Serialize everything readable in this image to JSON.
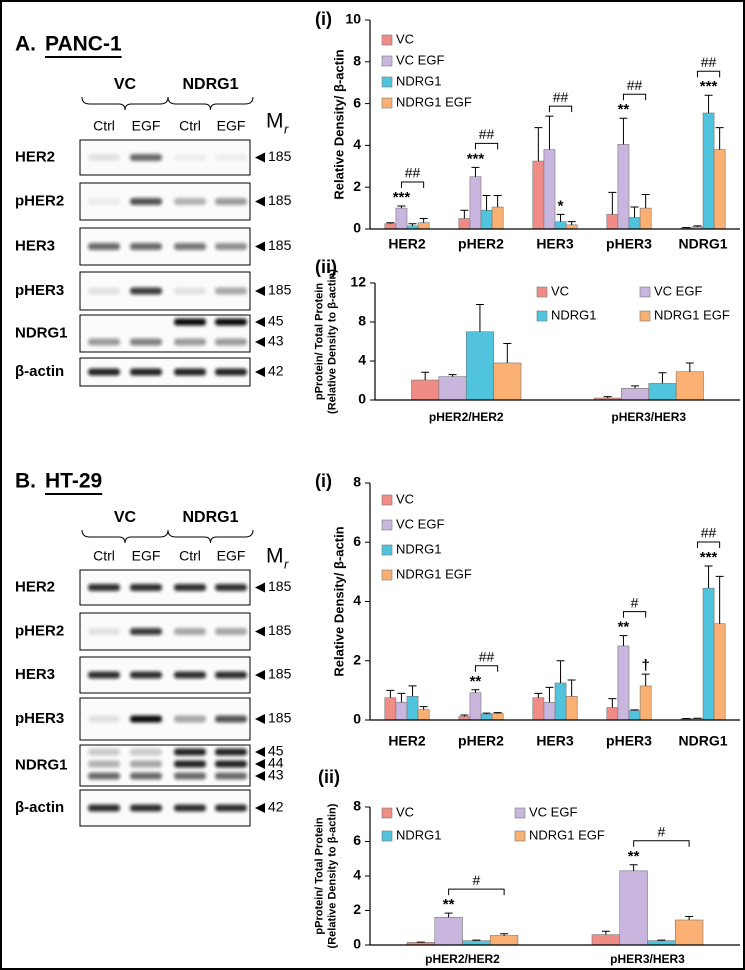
{
  "panels": [
    {
      "letter": "A.",
      "name": "PANC-1",
      "groups": [
        "VC",
        "NDRG1"
      ],
      "lanes": [
        "Ctrl",
        "EGF",
        "Ctrl",
        "EGF"
      ],
      "mr": {
        "symbol": "M",
        "subscript": "r"
      },
      "rows": [
        {
          "name": "HER2",
          "markers": [
            185
          ]
        },
        {
          "name": "pHER2",
          "markers": [
            185
          ]
        },
        {
          "name": "HER3",
          "markers": [
            185
          ]
        },
        {
          "name": "pHER3",
          "markers": [
            185
          ]
        },
        {
          "name": "NDRG1",
          "markers": [
            45,
            43
          ]
        },
        {
          "name": "β-actin",
          "markers": [
            42
          ]
        }
      ]
    },
    {
      "letter": "B.",
      "name": "HT-29",
      "groups": [
        "VC",
        "NDRG1"
      ],
      "lanes": [
        "Ctrl",
        "EGF",
        "Ctrl",
        "EGF"
      ],
      "mr": {
        "symbol": "M",
        "subscript": "r"
      },
      "rows": [
        {
          "name": "HER2",
          "markers": [
            185
          ]
        },
        {
          "name": "pHER2",
          "markers": [
            185
          ]
        },
        {
          "name": "HER3",
          "markers": [
            185
          ]
        },
        {
          "name": "pHER3",
          "markers": [
            185
          ]
        },
        {
          "name": "NDRG1",
          "markers": [
            45,
            44,
            43
          ]
        },
        {
          "name": "β-actin",
          "markers": [
            42
          ]
        }
      ]
    }
  ],
  "chart_data": [
    {
      "type": "bar",
      "label": "(i)",
      "ylabel": "Relative Density/ β-actin",
      "legend": "upper left",
      "categories": [
        "HER2",
        "pHER2",
        "HER3",
        "pHER3",
        "NDRG1"
      ],
      "ylim": [
        0,
        10
      ],
      "yticks": [
        0,
        2,
        4,
        6,
        8,
        10
      ],
      "brackets": [
        "##",
        "##",
        "##",
        "##",
        "##"
      ],
      "series": [
        {
          "name": "VC",
          "color": "#f08c86",
          "values": [
            0.25,
            0.5,
            3.25,
            0.7,
            0.05
          ],
          "errors": [
            0.05,
            0.4,
            1.6,
            1.05,
            0.02
          ],
          "marks": [
            null,
            null,
            null,
            null,
            null
          ]
        },
        {
          "name": "VC EGF",
          "color": "#c8b6df",
          "values": [
            1.0,
            2.5,
            3.8,
            4.05,
            0.1
          ],
          "errors": [
            0.1,
            0.45,
            1.6,
            1.25,
            0.05
          ],
          "marks": [
            "***",
            "***",
            null,
            "**",
            null
          ]
        },
        {
          "name": "NDRG1",
          "color": "#4fc4dc",
          "values": [
            0.15,
            0.9,
            0.35,
            0.55,
            5.55
          ],
          "errors": [
            0.1,
            0.7,
            0.35,
            0.5,
            0.85
          ],
          "marks": [
            null,
            null,
            "*",
            null,
            "***"
          ]
        },
        {
          "name": "NDRG1 EGF",
          "color": "#f9b072",
          "values": [
            0.3,
            1.05,
            0.2,
            1.0,
            3.8
          ],
          "errors": [
            0.2,
            0.55,
            0.15,
            0.65,
            1.05
          ],
          "marks": [
            null,
            null,
            null,
            null,
            null
          ]
        }
      ]
    },
    {
      "type": "bar",
      "label": "(ii)",
      "ylabel": [
        "pProtein/ Total Protein",
        "(Relative Density to β-actin)"
      ],
      "legend": "top",
      "categories": [
        "pHER2/HER2",
        "pHER3/HER3"
      ],
      "ylim": [
        0,
        12
      ],
      "yticks": [
        0,
        4,
        8,
        12
      ],
      "series": [
        {
          "name": "VC",
          "color": "#f08c86",
          "values": [
            2.05,
            0.2
          ],
          "errors": [
            0.8,
            0.15
          ]
        },
        {
          "name": "VC EGF",
          "color": "#c8b6df",
          "values": [
            2.4,
            1.2
          ],
          "errors": [
            0.2,
            0.25
          ]
        },
        {
          "name": "NDRG1",
          "color": "#4fc4dc",
          "values": [
            7.0,
            1.7
          ],
          "errors": [
            2.8,
            1.1
          ]
        },
        {
          "name": "NDRG1 EGF",
          "color": "#f9b072",
          "values": [
            3.8,
            2.9
          ],
          "errors": [
            2.0,
            0.9
          ]
        }
      ]
    },
    {
      "type": "bar",
      "label": "(i)",
      "ylabel": "Relative Density/ β-actin",
      "legend": "upper left",
      "categories": [
        "HER2",
        "pHER2",
        "HER3",
        "pHER3",
        "NDRG1"
      ],
      "ylim": [
        0,
        8
      ],
      "yticks": [
        0,
        2,
        4,
        6,
        8
      ],
      "brackets": [
        null,
        "##",
        null,
        "#",
        "##"
      ],
      "series": [
        {
          "name": "VC",
          "color": "#f08c86",
          "values": [
            0.75,
            0.12,
            0.75,
            0.42,
            0.04
          ],
          "errors": [
            0.25,
            0.05,
            0.15,
            0.3,
            0.01
          ],
          "marks": [
            null,
            null,
            null,
            null,
            null
          ]
        },
        {
          "name": "VC EGF",
          "color": "#c8b6df",
          "values": [
            0.6,
            0.92,
            0.6,
            2.5,
            0.05
          ],
          "errors": [
            0.3,
            0.1,
            0.5,
            0.35,
            0.01
          ],
          "marks": [
            null,
            "**",
            null,
            "**",
            null
          ]
        },
        {
          "name": "NDRG1",
          "color": "#4fc4dc",
          "values": [
            0.8,
            0.2,
            1.25,
            0.32,
            4.45
          ],
          "errors": [
            0.35,
            0.03,
            0.75,
            0.02,
            0.75
          ],
          "marks": [
            null,
            null,
            null,
            null,
            "***"
          ]
        },
        {
          "name": "NDRG1 EGF",
          "color": "#f9b072",
          "values": [
            0.35,
            0.22,
            0.8,
            1.15,
            3.25
          ],
          "errors": [
            0.1,
            0.03,
            0.55,
            0.4,
            1.6
          ],
          "marks": [
            null,
            null,
            null,
            "†",
            null
          ]
        }
      ]
    },
    {
      "type": "bar",
      "label": "(ii)",
      "ylabel": [
        "pProtein/ Total Protein",
        "(Relative Density to β-actin)"
      ],
      "legend": "top",
      "categories": [
        "pHER2/HER2",
        "pHER3/HER3"
      ],
      "ylim": [
        0,
        8
      ],
      "yticks": [
        0,
        2,
        4,
        6,
        8
      ],
      "brackets": [
        "#",
        "#"
      ],
      "series": [
        {
          "name": "VC",
          "color": "#f08c86",
          "values": [
            0.15,
            0.6
          ],
          "errors": [
            0.02,
            0.2
          ],
          "marks": [
            null,
            null
          ]
        },
        {
          "name": "VC EGF",
          "color": "#c8b6df",
          "values": [
            1.6,
            4.3
          ],
          "errors": [
            0.25,
            0.35
          ],
          "marks": [
            "**",
            "**"
          ]
        },
        {
          "name": "NDRG1",
          "color": "#4fc4dc",
          "values": [
            0.25,
            0.25
          ],
          "errors": [
            0.03,
            0.03
          ],
          "marks": [
            null,
            null
          ]
        },
        {
          "name": "NDRG1 EGF",
          "color": "#f9b072",
          "values": [
            0.55,
            1.45
          ],
          "errors": [
            0.1,
            0.2
          ],
          "marks": [
            null,
            null
          ]
        }
      ]
    }
  ]
}
